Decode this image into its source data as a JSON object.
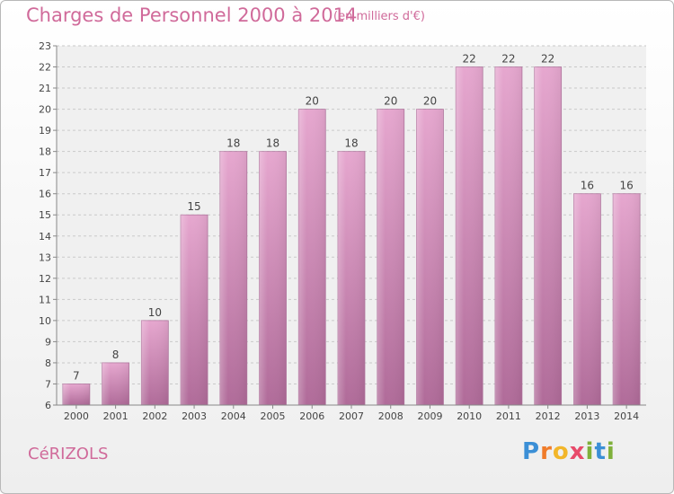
{
  "title": "Charges de Personnel 2000 à 2014",
  "subtitle": "(en milliers d'€)",
  "commune": "CéRIZOLS",
  "logo": {
    "letters": [
      "P",
      "r",
      "o",
      "x",
      "i",
      "t",
      "i"
    ],
    "colors": [
      "#3b8fd6",
      "#f07c2a",
      "#f2b62a",
      "#e84a6a",
      "#7fb03a",
      "#3b8fd6",
      "#7fb03a"
    ]
  },
  "colors": {
    "bar": "#d18fb8",
    "text": "#d06a9a"
  },
  "chart_data": {
    "type": "bar",
    "title": "Charges de Personnel 2000 à 2014",
    "subtitle": "(en milliers d'€)",
    "categories": [
      "2000",
      "2001",
      "2002",
      "2003",
      "2004",
      "2005",
      "2006",
      "2007",
      "2008",
      "2009",
      "2010",
      "2011",
      "2012",
      "2013",
      "2014"
    ],
    "values": [
      7,
      8,
      10,
      15,
      18,
      18,
      20,
      18,
      20,
      20,
      22,
      22,
      22,
      16,
      16
    ],
    "ylim": [
      6,
      23
    ],
    "yticks": [
      6,
      7,
      8,
      9,
      10,
      11,
      12,
      13,
      14,
      15,
      16,
      17,
      18,
      19,
      20,
      21,
      22,
      23
    ],
    "grid": true,
    "data_labels": true
  }
}
